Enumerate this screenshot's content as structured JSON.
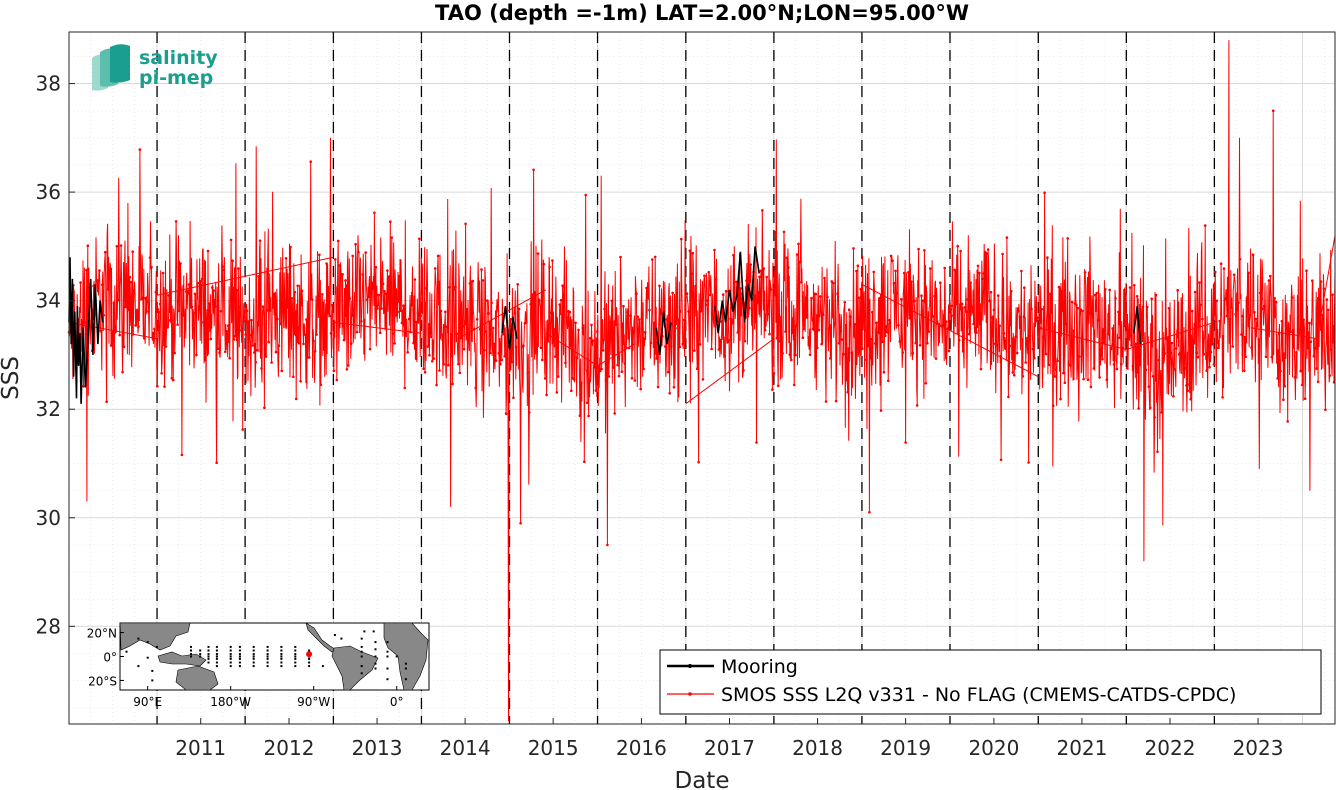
{
  "chart_data": {
    "type": "line",
    "title": "TAO (depth =-1m) LAT=2.00°N;LON=95.00°W",
    "xlabel": "Date",
    "ylabel": "SSS",
    "xlim": [
      "2010-01-01",
      "2024-05-15"
    ],
    "ylim": [
      26.2,
      38.95
    ],
    "grid": true,
    "x_ticks": [
      "2011",
      "2012",
      "2013",
      "2014",
      "2015",
      "2016",
      "2017",
      "2018",
      "2019",
      "2020",
      "2021",
      "2022",
      "2023"
    ],
    "y_ticks": [
      28,
      30,
      32,
      34,
      36,
      38
    ],
    "legend_position": "bottom-right",
    "legend": [
      {
        "label": "Mooring",
        "color": "#000000"
      },
      {
        "label": "SMOS SSS L2Q v331 - No FLAG  (CMEMS-CATDS-CPDC)",
        "color": "#ff0000"
      }
    ],
    "series": [
      {
        "name": "Mooring",
        "color": "#000000",
        "segments": [
          {
            "x": [
              "2010-01-01",
              "2010-01-05",
              "2010-01-10",
              "2010-01-15",
              "2010-01-20",
              "2010-01-25",
              "2010-02-01",
              "2010-02-05",
              "2010-02-10",
              "2010-02-15",
              "2010-02-20",
              "2010-03-01",
              "2010-03-10",
              "2010-03-20",
              "2010-04-01",
              "2010-04-10",
              "2010-04-20",
              "2010-05-01",
              "2010-05-10",
              "2010-05-20"
            ],
            "y": [
              33.6,
              34.8,
              33.2,
              34.4,
              32.6,
              33.8,
              32.2,
              33.9,
              32.8,
              33.4,
              32.1,
              33.5,
              32.4,
              33.2,
              34.4,
              33.0,
              34.3,
              33.2,
              34.0,
              33.6
            ]
          },
          {
            "x": [
              "2014-12-01",
              "2014-12-15",
              "2015-01-01",
              "2015-01-15",
              "2015-02-01"
            ],
            "y": [
              33.4,
              33.9,
              33.1,
              33.7,
              33.3
            ]
          },
          {
            "x": [
              "2016-09-01",
              "2016-09-15",
              "2016-10-01",
              "2016-10-15",
              "2016-11-01"
            ],
            "y": [
              33.5,
              33.0,
              33.8,
              33.2,
              33.6
            ]
          },
          {
            "x": [
              "2017-05-01",
              "2017-05-15",
              "2017-06-01",
              "2017-06-15",
              "2017-07-01",
              "2017-07-15",
              "2017-08-01",
              "2017-08-15",
              "2017-09-01",
              "2017-09-15",
              "2017-10-01",
              "2017-10-15",
              "2017-11-01"
            ],
            "y": [
              33.9,
              33.4,
              34.0,
              33.6,
              34.2,
              33.8,
              34.1,
              34.9,
              33.6,
              34.3,
              34.0,
              35.0,
              34.5
            ]
          },
          {
            "x": [
              "2022-02-01",
              "2022-02-15",
              "2022-03-01"
            ],
            "y": [
              33.4,
              33.9,
              33.2
            ]
          }
        ]
      },
      {
        "name": "SMOS SSS L2Q v331 - No FLAG  (CMEMS-CATDS-CPDC)",
        "color": "#ff0000",
        "mean": [
          [
            "2010-01-01",
            33.3
          ],
          [
            "2010-06-01",
            34.1
          ],
          [
            "2010-12-01",
            33.8
          ],
          [
            "2011-06-01",
            33.9
          ],
          [
            "2011-12-01",
            33.5
          ],
          [
            "2012-06-01",
            33.8
          ],
          [
            "2012-12-01",
            33.6
          ],
          [
            "2013-06-01",
            34.0
          ],
          [
            "2013-12-01",
            33.8
          ],
          [
            "2014-06-01",
            33.6
          ],
          [
            "2014-12-01",
            33.2
          ],
          [
            "2015-06-01",
            33.7
          ],
          [
            "2015-12-01",
            33.0
          ],
          [
            "2016-06-01",
            33.5
          ],
          [
            "2016-12-01",
            33.6
          ],
          [
            "2017-06-01",
            33.8
          ],
          [
            "2017-12-01",
            33.9
          ],
          [
            "2018-06-01",
            33.7
          ],
          [
            "2018-12-01",
            33.5
          ],
          [
            "2019-06-01",
            34.0
          ],
          [
            "2019-12-01",
            33.6
          ],
          [
            "2020-06-01",
            33.8
          ],
          [
            "2020-12-01",
            33.3
          ],
          [
            "2021-06-01",
            33.7
          ],
          [
            "2021-12-01",
            33.4
          ],
          [
            "2022-06-01",
            32.8
          ],
          [
            "2022-12-01",
            33.5
          ],
          [
            "2023-06-01",
            33.9
          ],
          [
            "2023-12-01",
            33.1
          ],
          [
            "2024-05-15",
            33.6
          ]
        ],
        "spread": 0.95,
        "extremes": [
          {
            "x": "2010-03-15",
            "y": 30.3
          },
          {
            "x": "2010-09-01",
            "y": 35.8
          },
          {
            "x": "2012-12-20",
            "y": 37.0
          },
          {
            "x": "2014-05-01",
            "y": 30.2
          },
          {
            "x": "2014-12-28",
            "y": 26.25
          },
          {
            "x": "2015-02-15",
            "y": 29.9
          },
          {
            "x": "2016-01-15",
            "y": 36.3
          },
          {
            "x": "2016-02-10",
            "y": 29.5
          },
          {
            "x": "2019-02-01",
            "y": 30.1
          },
          {
            "x": "2022-03-15",
            "y": 29.2
          },
          {
            "x": "2023-03-01",
            "y": 38.8
          },
          {
            "x": "2023-04-15",
            "y": 37.0
          },
          {
            "x": "2023-09-01",
            "y": 37.5
          },
          {
            "x": "2024-02-01",
            "y": 30.5
          }
        ],
        "gap_lines": [
          {
            "x": [
              "2010-01-01",
              "2011-01-01"
            ],
            "y": [
              33.6,
              33.3
            ]
          },
          {
            "x": [
              "2011-01-01",
              "2013-01-01"
            ],
            "y": [
              34.1,
              34.8
            ]
          },
          {
            "x": [
              "2013-01-01",
              "2014-01-01"
            ],
            "y": [
              33.6,
              33.4
            ]
          },
          {
            "x": [
              "2014-06-01",
              "2015-06-01"
            ],
            "y": [
              33.3,
              34.2
            ]
          },
          {
            "x": [
              "2015-06-01",
              "2016-01-01"
            ],
            "y": [
              33.4,
              32.8
            ]
          },
          {
            "x": [
              "2016-01-01",
              "2016-06-01"
            ],
            "y": [
              32.8,
              33.2
            ]
          },
          {
            "x": [
              "2017-01-01",
              "2018-01-01"
            ],
            "y": [
              32.1,
              33.3
            ]
          },
          {
            "x": [
              "2019-01-01",
              "2021-01-01"
            ],
            "y": [
              34.3,
              32.6
            ]
          },
          {
            "x": [
              "2021-01-01",
              "2022-01-01"
            ],
            "y": [
              33.5,
              33.1
            ]
          },
          {
            "x": [
              "2022-01-01",
              "2023-01-01"
            ],
            "y": [
              33.1,
              33.6
            ]
          },
          {
            "x": [
              "2023-06-01",
              "2024-03-01"
            ],
            "y": [
              33.5,
              33.3
            ]
          },
          {
            "x": [
              "2024-03-01",
              "2024-05-15"
            ],
            "y": [
              33.3,
              35.2
            ]
          }
        ]
      }
    ],
    "annotations": {
      "year_lines": [
        "2011-01-01",
        "2012-01-01",
        "2013-01-01",
        "2014-01-01",
        "2015-01-01",
        "2016-01-01",
        "2017-01-01",
        "2018-01-01",
        "2019-01-01",
        "2020-01-01",
        "2021-01-01",
        "2022-01-01",
        "2023-01-01"
      ]
    }
  },
  "logo": {
    "line1": "salinity",
    "line2": "pi-mep",
    "color": "#1a9e8f"
  },
  "inset_map": {
    "lat_labels": [
      "20°N",
      "0°",
      "20°S"
    ],
    "lon_labels": [
      "90°E",
      "180°W",
      "90°W",
      "0°"
    ],
    "station_marker_color": "#ff0000",
    "lat_ticks": [
      20,
      0,
      -20
    ],
    "lon_ticks": [
      90,
      180,
      270,
      360
    ],
    "lon_range": [
      60,
      395
    ],
    "lat_range": [
      -28,
      28
    ],
    "stations": [
      [
        137,
        8
      ],
      [
        137,
        5
      ],
      [
        137,
        2
      ],
      [
        137,
        0
      ],
      [
        147,
        5
      ],
      [
        147,
        2
      ],
      [
        147,
        0
      ],
      [
        156,
        8
      ],
      [
        156,
        5
      ],
      [
        156,
        2
      ],
      [
        156,
        0
      ],
      [
        156,
        -2
      ],
      [
        156,
        -5
      ],
      [
        165,
        8
      ],
      [
        165,
        5
      ],
      [
        165,
        2
      ],
      [
        165,
        0
      ],
      [
        165,
        -2
      ],
      [
        165,
        -5
      ],
      [
        165,
        -8
      ],
      [
        180,
        8
      ],
      [
        180,
        5
      ],
      [
        180,
        2
      ],
      [
        180,
        0
      ],
      [
        180,
        -2
      ],
      [
        180,
        -5
      ],
      [
        180,
        -8
      ],
      [
        190,
        8
      ],
      [
        190,
        5
      ],
      [
        190,
        2
      ],
      [
        190,
        0
      ],
      [
        190,
        -2
      ],
      [
        190,
        -5
      ],
      [
        190,
        -8
      ],
      [
        205,
        8
      ],
      [
        205,
        5
      ],
      [
        205,
        2
      ],
      [
        205,
        0
      ],
      [
        205,
        -2
      ],
      [
        205,
        -5
      ],
      [
        205,
        -8
      ],
      [
        220,
        8
      ],
      [
        220,
        5
      ],
      [
        220,
        2
      ],
      [
        220,
        0
      ],
      [
        220,
        -2
      ],
      [
        220,
        -5
      ],
      [
        220,
        -8
      ],
      [
        235,
        8
      ],
      [
        235,
        5
      ],
      [
        235,
        2
      ],
      [
        235,
        0
      ],
      [
        235,
        -2
      ],
      [
        235,
        -5
      ],
      [
        235,
        -8
      ],
      [
        250,
        8
      ],
      [
        250,
        5
      ],
      [
        250,
        2
      ],
      [
        250,
        0
      ],
      [
        250,
        -2
      ],
      [
        250,
        -5
      ],
      [
        250,
        -8
      ],
      [
        265,
        5
      ],
      [
        265,
        2
      ],
      [
        265,
        0
      ],
      [
        265,
        -2
      ],
      [
        265,
        -5
      ],
      [
        265,
        -8
      ],
      [
        322,
        15
      ],
      [
        322,
        8
      ],
      [
        322,
        4
      ],
      [
        322,
        0
      ],
      [
        322,
        -8
      ],
      [
        322,
        -14
      ],
      [
        325,
        21
      ],
      [
        335,
        21
      ],
      [
        337,
        12
      ],
      [
        337,
        6
      ],
      [
        337,
        0
      ],
      [
        337,
        -6
      ],
      [
        337,
        -10
      ],
      [
        350,
        12
      ],
      [
        350,
        4
      ],
      [
        350,
        0
      ],
      [
        350,
        -10
      ],
      [
        350,
        -19
      ],
      [
        360,
        0
      ],
      [
        370,
        -6
      ],
      [
        370,
        -10
      ],
      [
        370,
        -19
      ],
      [
        280,
        -8
      ],
      [
        300,
        15
      ],
      [
        293,
        18
      ],
      [
        80,
        -8
      ],
      [
        67,
        4
      ],
      [
        80,
        15
      ],
      [
        90,
        12
      ],
      [
        100,
        8
      ],
      [
        90,
        -1
      ],
      [
        95,
        -12
      ],
      [
        95,
        -20
      ]
    ],
    "target": [
      265,
      2
    ]
  }
}
